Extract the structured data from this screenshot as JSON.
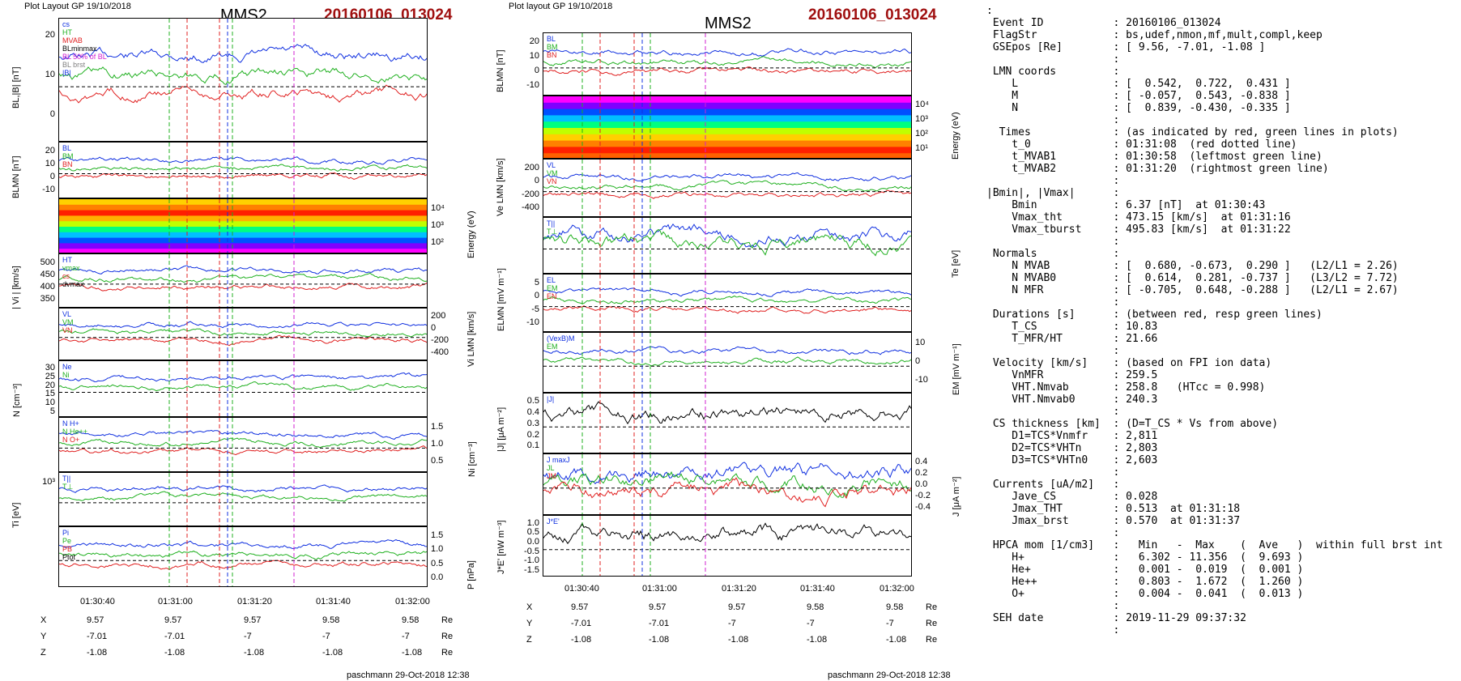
{
  "left": {
    "header": "Plot Layout GP 19/10/2018",
    "title": "MMS2",
    "event": "20160106_013024",
    "footer": "paschmann 29-Oct-2018 12:38",
    "times": [
      "01:30:40",
      "01:31:00",
      "01:31:20",
      "01:31:40",
      "01:32:00"
    ],
    "coords": [
      {
        "label": "X",
        "values": [
          "9.57",
          "9.57",
          "9.57",
          "9.58",
          "9.58"
        ],
        "unit": "Re"
      },
      {
        "label": "Y",
        "values": [
          "-7.01",
          "-7.01",
          "-7",
          "-7",
          "-7"
        ],
        "unit": "Re"
      },
      {
        "label": "Z",
        "values": [
          "-1.08",
          "-1.08",
          "-1.08",
          "-1.08",
          "-1.08"
        ],
        "unit": "Re"
      }
    ],
    "panels": [
      {
        "id": "bl",
        "ylabel": "BL,|B| [nT]",
        "ticks": [
          "20",
          "10",
          "0"
        ],
        "legend": [
          "cs",
          "HT",
          "MVAB",
          "BLminmax",
          "BL 50% of BL",
          "BL brst",
          "|B|"
        ]
      },
      {
        "id": "blmn",
        "ylabel": "BLMN [nT]",
        "ticks": [
          "20",
          "10",
          "0",
          "-10"
        ],
        "legend": [
          "BL",
          "BM",
          "BN"
        ]
      },
      {
        "id": "ispec",
        "ylabel": "Energy (eV)",
        "ticks": [
          "10⁴",
          "10³",
          "10²"
        ]
      },
      {
        "id": "vi",
        "ylabel": "| Vi | [km/s]",
        "ticks": [
          "500",
          "450",
          "400",
          "350"
        ],
        "legend": [
          "HT",
          "vmax",
          "cs",
          "dvmax"
        ]
      },
      {
        "id": "vilmn",
        "ylabel": "Vi LMN [km/s]",
        "ticks": [
          "200",
          "0",
          "-200",
          "-400"
        ],
        "legend": [
          "VL",
          "VM",
          "VN"
        ]
      },
      {
        "id": "n",
        "ylabel": "N [cm⁻³]",
        "ticks": [
          "30",
          "25",
          "20",
          "15",
          "10",
          "5"
        ],
        "legend": [
          "Ne",
          "Ni"
        ]
      },
      {
        "id": "ni",
        "ylabel": "Ni [cm⁻³]",
        "ticks": [
          "1.5",
          "1.0",
          "0.5"
        ],
        "legend": [
          "N H+",
          "N He++",
          "N O+"
        ]
      },
      {
        "id": "ti",
        "ylabel": "Ti [eV]",
        "ticks": [
          "10³"
        ],
        "legend": [
          "T||",
          "T⊥"
        ]
      },
      {
        "id": "p",
        "ylabel": "P [nPa]",
        "ticks": [
          "1.5",
          "1.0",
          "0.5",
          "0.0"
        ],
        "legend": [
          "Pi",
          "Pe",
          "PB",
          "Ptot"
        ]
      }
    ]
  },
  "mid": {
    "header": "Plot layout GP 19/10/2018",
    "title": "MMS2",
    "event": "20160106_013024",
    "footer": "paschmann 29-Oct-2018 12:38",
    "times": [
      "01:30:40",
      "01:31:00",
      "01:31:20",
      "01:31:40",
      "01:32:00"
    ],
    "coords": [
      {
        "label": "X",
        "values": [
          "9.57",
          "9.57",
          "9.57",
          "9.58",
          "9.58"
        ],
        "unit": "Re"
      },
      {
        "label": "Y",
        "values": [
          "-7.01",
          "-7.01",
          "-7",
          "-7",
          "-7"
        ],
        "unit": "Re"
      },
      {
        "label": "Z",
        "values": [
          "-1.08",
          "-1.08",
          "-1.08",
          "-1.08",
          "-1.08"
        ],
        "unit": "Re"
      }
    ],
    "panels": [
      {
        "id": "blmn",
        "ylabel": "BLMN [nT]",
        "ticks": [
          "20",
          "10",
          "0",
          "-10"
        ],
        "legend": [
          "BL",
          "BM",
          "BN"
        ]
      },
      {
        "id": "espec",
        "ylabel": "Energy (eV)",
        "ticks": [
          "10⁴",
          "10³",
          "10²",
          "10¹"
        ]
      },
      {
        "id": "velmn",
        "ylabel": "Ve LMN [km/s]",
        "ticks": [
          "200",
          "0",
          "-200",
          "-400"
        ],
        "legend": [
          "VL",
          "VM",
          "VN"
        ]
      },
      {
        "id": "te",
        "ylabel": "Te [eV]",
        "ticks": [],
        "legend": [
          "T||",
          "T⊥"
        ]
      },
      {
        "id": "elmn",
        "ylabel": "ELMN [mV m⁻¹]",
        "ticks": [
          "5",
          "0",
          "-5",
          "-10"
        ],
        "legend": [
          "EL",
          "EM",
          "EN"
        ]
      },
      {
        "id": "em",
        "ylabel": "EM [mV m⁻¹]",
        "ticks": [
          "10",
          "0",
          "-10"
        ],
        "legend": [
          "(VexB)M",
          "EM"
        ]
      },
      {
        "id": "j",
        "ylabel": "|J| [μA m⁻²]",
        "ticks": [
          "0.5",
          "0.4",
          "0.3",
          "0.2",
          "0.1"
        ],
        "legend": [
          "|J|"
        ]
      },
      {
        "id": "jlmn",
        "ylabel": "J [μA m⁻²]",
        "ticks": [
          "0.4",
          "0.2",
          "0.0",
          "-0.2",
          "-0.4"
        ],
        "legend": [
          "J maxJ",
          "JL",
          "JM"
        ]
      },
      {
        "id": "je",
        "ylabel": "J*E' [nW m⁻³]",
        "ticks": [
          "1.0",
          "0.5",
          "0.0",
          "-0.5",
          "-1.0",
          "-1.5"
        ],
        "legend": [
          "J*E'"
        ]
      }
    ]
  },
  "info_lines": [
    ":",
    " Event ID           : 20160106_013024",
    " FlagStr            : bs,udef,nmon,mf,mult,compl,keep",
    " GSEpos [Re]        : [ 9.56, -7.01, -1.08 ]",
    "                    :",
    " LMN coords         :",
    "    L               : [  0.542,  0.722,  0.431 ]",
    "    M               : [ -0.057,  0.543, -0.838 ]",
    "    N               : [  0.839, -0.430, -0.335 ]",
    "                    :",
    "  Times             : (as indicated by red, green lines in plots)",
    "    t_0             : 01:31:08  (red dotted line)",
    "    t_MVAB1         : 01:30:58  (leftmost green line)",
    "    t_MVAB2         : 01:31:20  (rightmost green line)",
    "                    :",
    "|Bmin|, |Vmax|      :",
    "    Bmin            : 6.37 [nT]  at 01:30:43",
    "    Vmax_tht        : 473.15 [km/s]  at 01:31:16",
    "    Vmax_tburst     : 495.83 [km/s]  at 01:31:22",
    "                    :",
    " Normals            :",
    "    N MVAB          : [  0.680, -0.673,  0.290 ]   (L2/L1 = 2.26)",
    "    N MVAB0         : [  0.614,  0.281, -0.737 ]   (L3/L2 = 7.72)",
    "    N MFR           : [ -0.705,  0.648, -0.288 ]   (L2/L1 = 2.67)",
    "                    :",
    " Durations [s]      : (between red, resp green lines)",
    "    T_CS            : 10.83",
    "    T_MFR/HT        : 21.66",
    "                    :",
    " Velocity [km/s]    : (based on FPI ion data)",
    "    VnMFR           : 259.5",
    "    VHT.Nmvab       : 258.8   (HTcc = 0.998)",
    "    VHT.Nmvab0      : 240.3",
    "                    :",
    " CS thickness [km]  : (D=T_CS * Vs from above)",
    "    D1=TCS*Vnmfr    : 2,811",
    "    D2=TCS*VHTn     : 2,803",
    "    D3=TCS*VHTn0    : 2,603",
    "                    :",
    " Currents [uA/m2]   :",
    "    Jave_CS         : 0.028",
    "    Jmax_THT        : 0.513  at 01:31:18",
    "    Jmax_brst       : 0.570  at 01:31:37",
    "                    :",
    " HPCA mom [1/cm3]   :   Min   -  Max    (  Ave   )  within full brst int",
    "    H+              :   6.302 - 11.356  (  9.693 )",
    "    He+             :   0.001 -  0.019  (  0.001 )",
    "    He++            :   0.803 -  1.672  (  1.260 )",
    "    O+              :   0.004 -  0.041  (  0.013 )",
    "                    :",
    " SEH date           : 2019-11-29 09:37:32",
    "                    :"
  ],
  "colors": {
    "event": "#a01010",
    "red": "#e02020",
    "green": "#20b020",
    "blue": "#1030e0",
    "magenta": "#d020d0"
  }
}
